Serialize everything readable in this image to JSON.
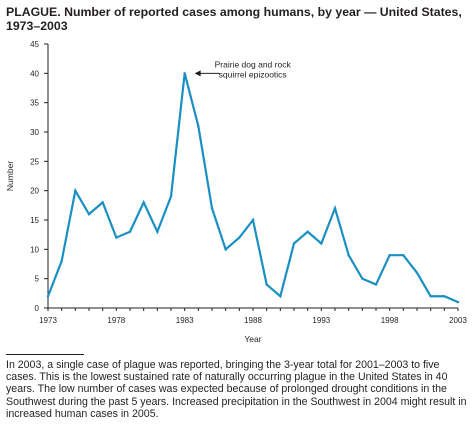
{
  "header": {
    "title": "PLAGUE. Number of reported cases among humans, by year — United States, 1973–2003"
  },
  "footnote": {
    "text": "In 2003, a single case of plague was reported, bringing the 3-year total for 2001–2003 to five cases. This is the lowest sustained rate of naturally occurring plague in the United States in 40 years. The low number of cases was expected because of prolonged drought conditions in the Southwest during the past 5 years. Increased precipitation in the Southwest in 2004 might result in increased human cases in 2005."
  },
  "chart_data": {
    "type": "line",
    "x": [
      1973,
      1974,
      1975,
      1976,
      1977,
      1978,
      1979,
      1980,
      1981,
      1982,
      1983,
      1984,
      1985,
      1986,
      1987,
      1988,
      1989,
      1990,
      1991,
      1992,
      1993,
      1994,
      1995,
      1996,
      1997,
      1998,
      1999,
      2000,
      2001,
      2002,
      2003
    ],
    "series": [
      {
        "values": [
          2,
          8,
          20,
          16,
          18,
          12,
          13,
          18,
          13,
          19,
          40,
          31,
          17,
          10,
          12,
          15,
          4,
          2,
          11,
          13,
          11,
          17,
          9,
          5,
          4,
          9,
          9,
          6,
          2,
          2,
          1
        ]
      }
    ],
    "xlabel": "Year",
    "ylabel": "Number",
    "xlim": [
      1973,
      2003
    ],
    "ylim": [
      0,
      45
    ],
    "xticks": [
      1973,
      1978,
      1983,
      1988,
      1993,
      1998,
      2003
    ],
    "yticks": [
      0,
      5,
      10,
      15,
      20,
      25,
      30,
      35,
      40,
      45
    ],
    "grid": false,
    "line_color": "#1a8fc4",
    "annotation": {
      "lines": [
        "Prairie dog and rock",
        "squirrel epizootics"
      ],
      "x": 1983,
      "y": 40
    }
  }
}
